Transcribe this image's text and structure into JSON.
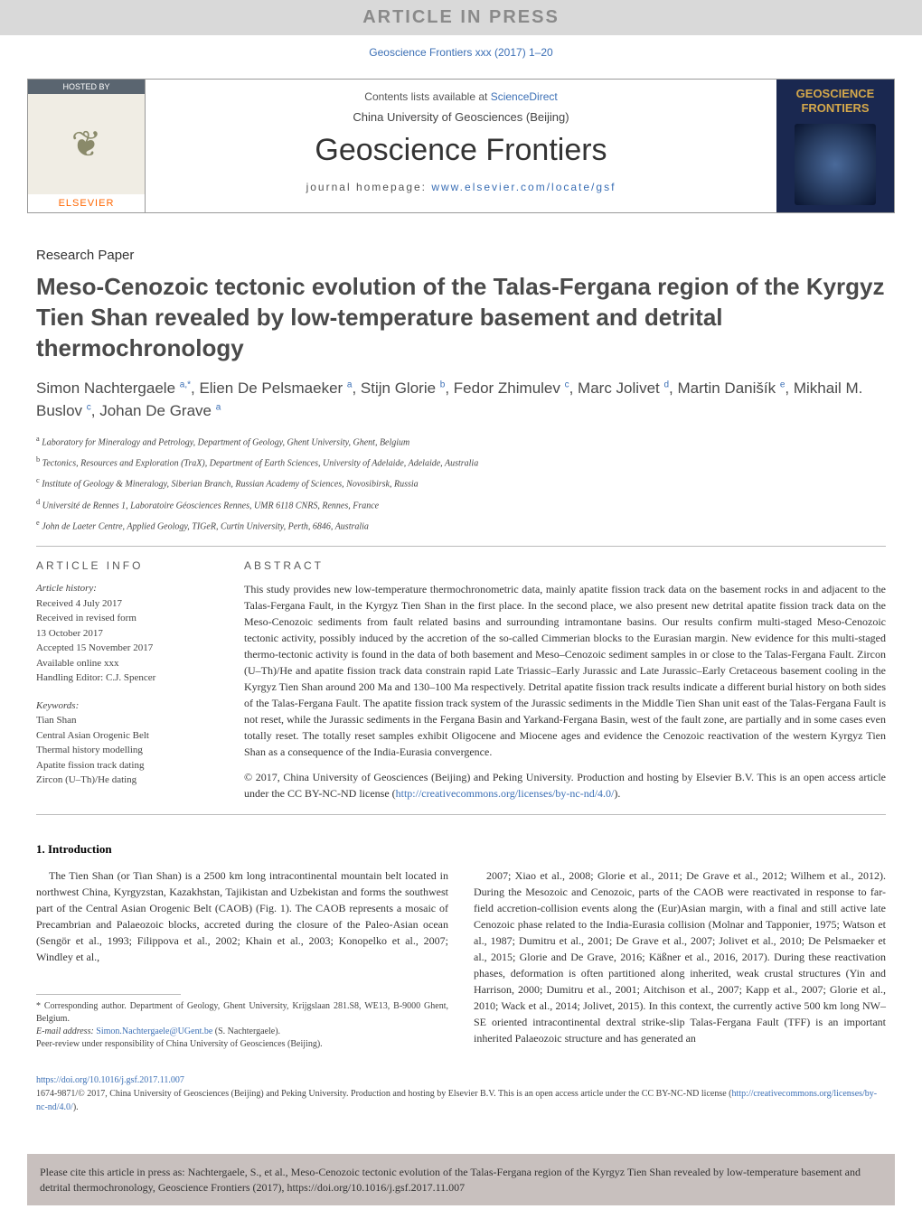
{
  "banner": "ARTICLE IN PRESS",
  "citation": "Geoscience Frontiers xxx (2017) 1–20",
  "header": {
    "hosted_by": "HOSTED BY",
    "elsevier": "ELSEVIER",
    "contents_prefix": "Contents lists available at ",
    "contents_link": "ScienceDirect",
    "university": "China University of Geosciences (Beijing)",
    "journal": "Geoscience Frontiers",
    "homepage_prefix": "journal homepage: ",
    "homepage_link": "www.elsevier.com/locate/gsf",
    "cover_title": "GEOSCIENCE FRONTIERS"
  },
  "paper_type": "Research Paper",
  "title": "Meso-Cenozoic tectonic evolution of the Talas-Fergana region of the Kyrgyz Tien Shan revealed by low-temperature basement and detrital thermochronology",
  "authors_html": "Simon Nachtergaele <sup>a,*</sup>, Elien De Pelsmaeker <sup>a</sup>, Stijn Glorie <sup>b</sup>, Fedor Zhimulev <sup>c</sup>, Marc Jolivet <sup>d</sup>, Martin Danišík <sup>e</sup>, Mikhail M. Buslov <sup>c</sup>, Johan De Grave <sup>a</sup>",
  "affiliations": [
    "a Laboratory for Mineralogy and Petrology, Department of Geology, Ghent University, Ghent, Belgium",
    "b Tectonics, Resources and Exploration (TraX), Department of Earth Sciences, University of Adelaide, Adelaide, Australia",
    "c Institute of Geology & Mineralogy, Siberian Branch, Russian Academy of Sciences, Novosibirsk, Russia",
    "d Université de Rennes 1, Laboratoire Géosciences Rennes, UMR 6118 CNRS, Rennes, France",
    "e John de Laeter Centre, Applied Geology, TIGeR, Curtin University, Perth, 6846, Australia"
  ],
  "info_heading": "ARTICLE INFO",
  "abstract_heading": "ABSTRACT",
  "history_label": "Article history:",
  "history_lines": [
    "Received 4 July 2017",
    "Received in revised form",
    "13 October 2017",
    "Accepted 15 November 2017",
    "Available online xxx",
    "Handling Editor: C.J. Spencer"
  ],
  "keywords_label": "Keywords:",
  "keywords": [
    "Tian Shan",
    "Central Asian Orogenic Belt",
    "Thermal history modelling",
    "Apatite fission track dating",
    "Zircon (U–Th)/He dating"
  ],
  "abstract": "This study provides new low-temperature thermochronometric data, mainly apatite fission track data on the basement rocks in and adjacent to the Talas-Fergana Fault, in the Kyrgyz Tien Shan in the first place. In the second place, we also present new detrital apatite fission track data on the Meso-Cenozoic sediments from fault related basins and surrounding intramontane basins. Our results confirm multi-staged Meso-Cenozoic tectonic activity, possibly induced by the accretion of the so-called Cimmerian blocks to the Eurasian margin. New evidence for this multi-staged thermo-tectonic activity is found in the data of both basement and Meso–Cenozoic sediment samples in or close to the Talas-Fergana Fault. Zircon (U–Th)/He and apatite fission track data constrain rapid Late Triassic–Early Jurassic and Late Jurassic–Early Cretaceous basement cooling in the Kyrgyz Tien Shan around 200 Ma and 130–100 Ma respectively. Detrital apatite fission track results indicate a different burial history on both sides of the Talas-Fergana Fault. The apatite fission track system of the Jurassic sediments in the Middle Tien Shan unit east of the Talas-Fergana Fault is not reset, while the Jurassic sediments in the Fergana Basin and Yarkand-Fergana Basin, west of the fault zone, are partially and in some cases even totally reset. The totally reset samples exhibit Oligocene and Miocene ages and evidence the Cenozoic reactivation of the western Kyrgyz Tien Shan as a consequence of the India-Eurasia convergence.",
  "abstract_copyright": "© 2017, China University of Geosciences (Beijing) and Peking University. Production and hosting by Elsevier B.V. This is an open access article under the CC BY-NC-ND license (",
  "license_link": "http://creativecommons.org/licenses/by-nc-nd/4.0/",
  "license_close": ").",
  "intro_heading": "1. Introduction",
  "intro_p1": "The Tien Shan (or Tian Shan) is a 2500 km long intracontinental mountain belt located in northwest China, Kyrgyzstan, Kazakhstan, Tajikistan and Uzbekistan and forms the southwest part of the Central Asian Orogenic Belt (CAOB) (Fig. 1). The CAOB represents a mosaic of Precambrian and Palaeozoic blocks, accreted during the closure of the Paleo-Asian ocean (Sengör et al., 1993; Filippova et al., 2002; Khain et al., 2003; Konopelko et al., 2007; Windley et al.,",
  "intro_p2": "2007; Xiao et al., 2008; Glorie et al., 2011; De Grave et al., 2012; Wilhem et al., 2012). During the Mesozoic and Cenozoic, parts of the CAOB were reactivated in response to far-field accretion-collision events along the (Eur)Asian margin, with a final and still active late Cenozoic phase related to the India-Eurasia collision (Molnar and Tapponier, 1975; Watson et al., 1987; Dumitru et al., 2001; De Grave et al., 2007; Jolivet et al., 2010; De Pelsmaeker et al., 2015; Glorie and De Grave, 2016; Käßner et al., 2016, 2017). During these reactivation phases, deformation is often partitioned along inherited, weak crustal structures (Yin and Harrison, 2000; Dumitru et al., 2001; Aitchison et al., 2007; Kapp et al., 2007; Glorie et al., 2010; Wack et al., 2014; Jolivet, 2015). In this context, the currently active 500 km long NW–SE oriented intracontinental dextral strike-slip Talas-Fergana Fault (TFF) is an important inherited Palaeozoic structure and has generated an",
  "corr_author": "* Corresponding author. Department of Geology, Ghent University, Krijgslaan 281.S8, WE13, B-9000 Ghent, Belgium.",
  "email_label": "E-mail address: ",
  "email": "Simon.Nachtergaele@UGent.be",
  "email_suffix": " (S. Nachtergaele).",
  "peer_review": "Peer-review under responsibility of China University of Geosciences (Beijing).",
  "doi_link": "https://doi.org/10.1016/j.gsf.2017.11.007",
  "issn_line": "1674-9871/© 2017, China University of Geosciences (Beijing) and Peking University. Production and hosting by Elsevier B.V. This is an open access article under the CC BY-NC-ND license (",
  "issn_link": "http://creativecommons.org/licenses/by-nc-nd/4.0/",
  "issn_close": ").",
  "cite_box": "Please cite this article in press as: Nachtergaele, S., et al., Meso-Cenozoic tectonic evolution of the Talas-Fergana region of the Kyrgyz Tien Shan revealed by low-temperature basement and detrital thermochronology, Geoscience Frontiers (2017), https://doi.org/10.1016/j.gsf.2017.11.007"
}
